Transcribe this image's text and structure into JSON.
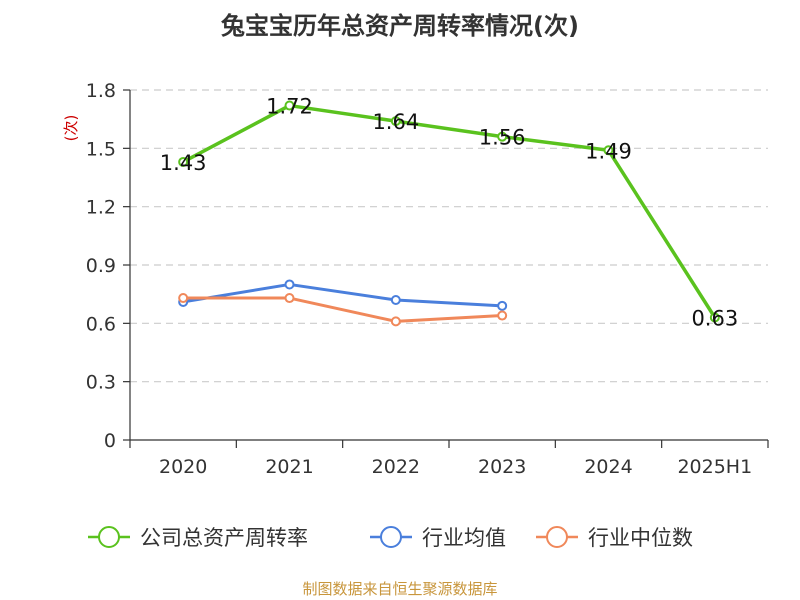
{
  "header": {
    "title": "兔宝宝历年总资产周转率情况(次)"
  },
  "footer": {
    "source": "制图数据来自恒生聚源数据库"
  },
  "chart_data": {
    "type": "line",
    "title": "兔宝宝历年总资产周转率情况(次)",
    "ylabel": "(次)",
    "xlabel": "",
    "ylim": [
      0,
      1.8
    ],
    "yticks": [
      "0",
      "0.3",
      "0.6",
      "0.9",
      "1.2",
      "1.5",
      "1.8"
    ],
    "categories": [
      "2020",
      "2021",
      "2022",
      "2023",
      "2024",
      "2025H1"
    ],
    "grid": "horizontal dashed",
    "legend_position": "bottom",
    "series": [
      {
        "name": "公司总资产周转率",
        "color": "#5ac21e",
        "values": [
          1.43,
          1.72,
          1.64,
          1.56,
          1.49,
          0.63
        ],
        "labels": [
          "1.43",
          "1.72",
          "1.64",
          "1.56",
          "1.49",
          "0.63"
        ]
      },
      {
        "name": "行业均值",
        "color": "#4a7fdc",
        "values": [
          0.71,
          0.8,
          0.72,
          0.69,
          null,
          null
        ]
      },
      {
        "name": "行业中位数",
        "color": "#f0885a",
        "values": [
          0.73,
          0.73,
          0.61,
          0.64,
          null,
          null
        ]
      }
    ]
  }
}
